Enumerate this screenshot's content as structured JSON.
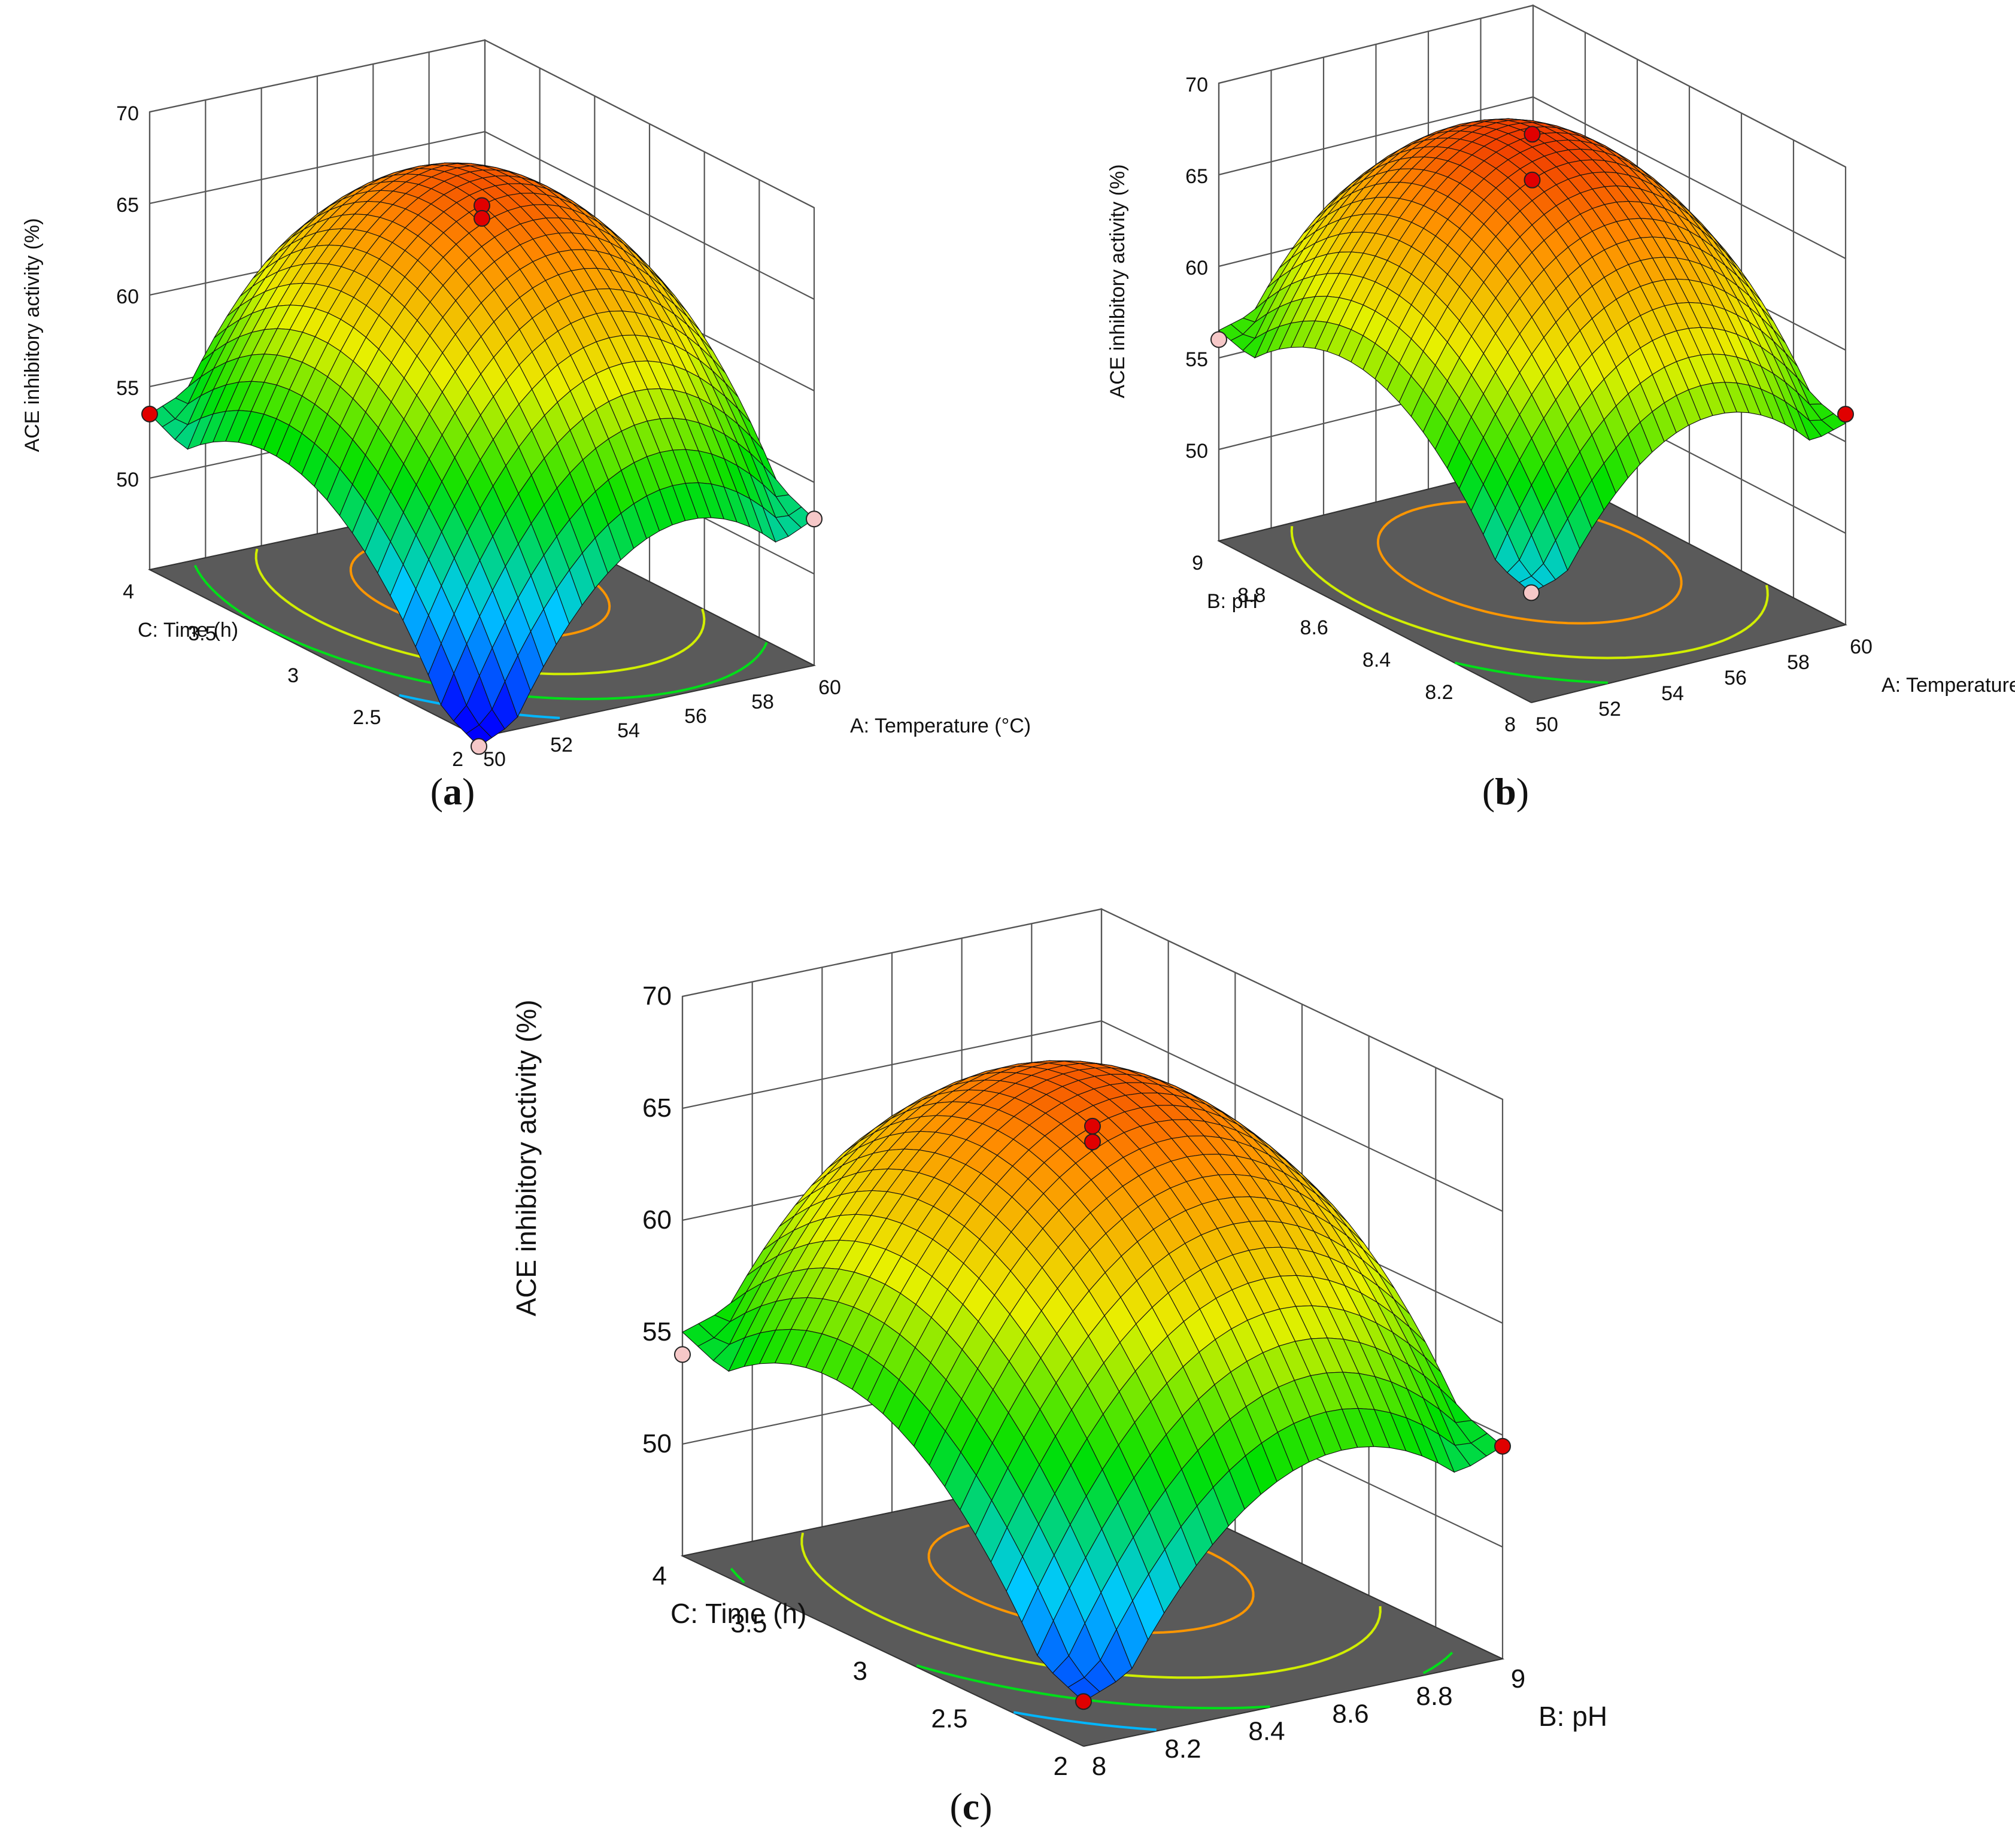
{
  "figure": {
    "panel_a_label": "a",
    "panel_b_label": "b",
    "panel_c_label": "c",
    "colorscale": [
      "#0000ff",
      "#00c8ff",
      "#00e000",
      "#e8f000",
      "#ff8c00",
      "#e81000"
    ],
    "point_red": "#e00000",
    "point_pink": "#f6c8c8",
    "floor_color": "#5a5a5a"
  },
  "chart_data": [
    {
      "panel": "a",
      "type": "surface3d",
      "zlabel": "ACE inhibitory activity (%)",
      "xlabel": "A: Temperature (°C)",
      "ylabel": "C: Time (h)",
      "x_ticks": [
        "50",
        "52",
        "54",
        "56",
        "58",
        "60"
      ],
      "y_ticks": [
        "2",
        "2.5",
        "3",
        "3.5",
        "4"
      ],
      "z_ticks": [
        "50",
        "55",
        "60",
        "65",
        "70"
      ],
      "xlim": [
        50,
        60
      ],
      "ylim": [
        2,
        4
      ],
      "zlim": [
        45,
        70
      ],
      "surface": {
        "peak_x": 55,
        "peak_y": 3,
        "peak_z": 66.5,
        "corner_z": [
          44.5,
          53,
          53.5,
          61
        ]
      },
      "contour_levels": [
        50,
        55,
        60,
        65
      ],
      "design_points": [
        {
          "x": 55,
          "y": 3,
          "z": 67.5,
          "color": "red"
        },
        {
          "x": 55,
          "y": 3,
          "z": 66.8,
          "color": "red"
        },
        {
          "x": 50,
          "y": 4,
          "z": 53.5,
          "color": "red"
        },
        {
          "x": 60,
          "y": 2,
          "z": 53,
          "color": "pink"
        },
        {
          "x": 50,
          "y": 2,
          "z": 44.5,
          "color": "pink"
        }
      ]
    },
    {
      "panel": "b",
      "type": "surface3d",
      "zlabel": "ACE inhibitory activity (%)",
      "xlabel": "A: Temperature (°C)",
      "ylabel": "B: pH",
      "x_ticks": [
        "50",
        "52",
        "54",
        "56",
        "58",
        "60"
      ],
      "y_ticks": [
        "8",
        "8.2",
        "8.4",
        "8.6",
        "8.8",
        "9"
      ],
      "z_ticks": [
        "50",
        "55",
        "60",
        "65",
        "70"
      ],
      "xlim": [
        50,
        60
      ],
      "ylim": [
        8,
        9
      ],
      "zlim": [
        45,
        70
      ],
      "surface": {
        "peak_x": 55,
        "peak_y": 8.5,
        "peak_z": 68,
        "corner_z": [
          51,
          56,
          56.5,
          61
        ]
      },
      "contour_levels": [
        55,
        60,
        65
      ],
      "design_points": [
        {
          "x": 55,
          "y": 8.5,
          "z": 69.5,
          "color": "red"
        },
        {
          "x": 55,
          "y": 8.5,
          "z": 67,
          "color": "red"
        },
        {
          "x": 60,
          "y": 8,
          "z": 56.5,
          "color": "red"
        },
        {
          "x": 50,
          "y": 9,
          "z": 56,
          "color": "pink"
        },
        {
          "x": 50,
          "y": 8,
          "z": 51,
          "color": "pink"
        }
      ]
    },
    {
      "panel": "c",
      "type": "surface3d",
      "zlabel": "ACE inhibitory activity (%)",
      "xlabel": "B: pH",
      "ylabel": "C: Time (h)",
      "x_ticks": [
        "8",
        "8.2",
        "8.4",
        "8.6",
        "8.8",
        "9"
      ],
      "y_ticks": [
        "2",
        "2.5",
        "3",
        "3.5",
        "4"
      ],
      "z_ticks": [
        "50",
        "55",
        "60",
        "65",
        "70"
      ],
      "xlim": [
        8,
        9
      ],
      "ylim": [
        2,
        4
      ],
      "zlim": [
        45,
        70
      ],
      "surface": {
        "peak_x": 8.5,
        "peak_y": 3,
        "peak_z": 66.5,
        "corner_z": [
          47,
          54.5,
          55,
          61
        ]
      },
      "contour_levels": [
        50,
        55,
        60,
        65
      ],
      "design_points": [
        {
          "x": 8.5,
          "y": 3,
          "z": 66.5,
          "color": "red"
        },
        {
          "x": 8.5,
          "y": 3,
          "z": 65.8,
          "color": "red"
        },
        {
          "x": 9,
          "y": 2,
          "z": 54.5,
          "color": "red"
        },
        {
          "x": 8,
          "y": 4,
          "z": 54,
          "color": "pink"
        },
        {
          "x": 8,
          "y": 2,
          "z": 47,
          "color": "red"
        }
      ]
    }
  ]
}
